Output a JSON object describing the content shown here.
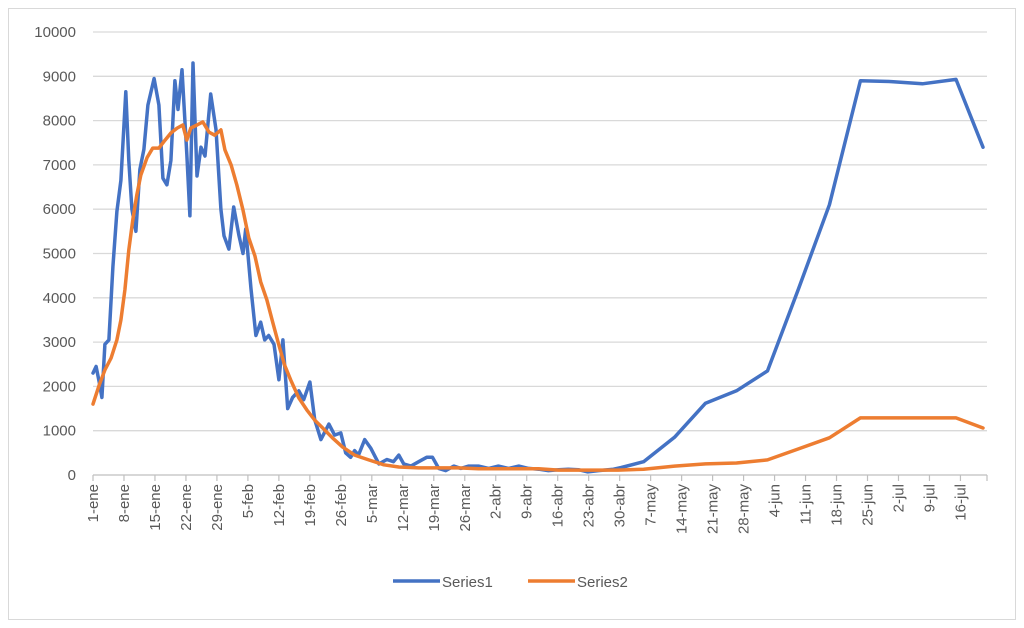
{
  "chart_data": {
    "type": "line",
    "title": "",
    "xlabel": "",
    "ylabel": "",
    "x_unit": "days since 1-ene",
    "xlim": [
      0,
      202
    ],
    "ylim": [
      0,
      10000
    ],
    "y_ticks": [
      0,
      1000,
      2000,
      3000,
      4000,
      5000,
      6000,
      7000,
      8000,
      9000,
      10000
    ],
    "x_tick_labels": [
      "1-ene",
      "8-ene",
      "15-ene",
      "22-ene",
      "29-ene",
      "5-feb",
      "12-feb",
      "19-feb",
      "26-feb",
      "5-mar",
      "12-mar",
      "19-mar",
      "26-mar",
      "2-abr",
      "9-abr",
      "16-abr",
      "23-abr",
      "30-abr",
      "7-may",
      "14-may",
      "21-may",
      "28-may",
      "4-jun",
      "11-jun",
      "18-jun",
      "25-jun",
      "2-jul",
      "9-jul",
      "16-jul"
    ],
    "x_tick_step_days": 7,
    "grid": "horizontal",
    "legend": "bottom",
    "series": [
      {
        "name": "Series1",
        "color": "#4472c4",
        "points": [
          [
            0,
            2300
          ],
          [
            0.7,
            2450
          ],
          [
            1.4,
            2100
          ],
          [
            2.0,
            1750
          ],
          [
            2.7,
            2950
          ],
          [
            3.6,
            3050
          ],
          [
            4.5,
            4700
          ],
          [
            5.4,
            5950
          ],
          [
            6.3,
            6650
          ],
          [
            7.4,
            8650
          ],
          [
            8.1,
            7100
          ],
          [
            8.8,
            6000
          ],
          [
            9.7,
            5500
          ],
          [
            10.6,
            6900
          ],
          [
            11.5,
            7350
          ],
          [
            12.4,
            8350
          ],
          [
            13.8,
            8950
          ],
          [
            14.9,
            8350
          ],
          [
            15.8,
            6700
          ],
          [
            16.7,
            6550
          ],
          [
            17.6,
            7100
          ],
          [
            18.5,
            8900
          ],
          [
            19.2,
            8250
          ],
          [
            20.1,
            9150
          ],
          [
            21.2,
            7250
          ],
          [
            21.9,
            5850
          ],
          [
            22.6,
            9300
          ],
          [
            23.5,
            6750
          ],
          [
            24.4,
            7400
          ],
          [
            25.3,
            7200
          ],
          [
            26.6,
            8600
          ],
          [
            27.8,
            7800
          ],
          [
            28.9,
            6000
          ],
          [
            29.6,
            5400
          ],
          [
            30.7,
            5100
          ],
          [
            31.8,
            6050
          ],
          [
            33.0,
            5400
          ],
          [
            33.9,
            5000
          ],
          [
            34.5,
            5550
          ],
          [
            35.7,
            4200
          ],
          [
            36.8,
            3150
          ],
          [
            37.9,
            3450
          ],
          [
            38.8,
            3050
          ],
          [
            39.7,
            3150
          ],
          [
            40.9,
            2950
          ],
          [
            42.0,
            2150
          ],
          [
            42.9,
            3050
          ],
          [
            44.0,
            1500
          ],
          [
            45.1,
            1750
          ],
          [
            46.5,
            1900
          ],
          [
            47.6,
            1700
          ],
          [
            49.0,
            2100
          ],
          [
            50.1,
            1250
          ],
          [
            51.5,
            800
          ],
          [
            53.3,
            1150
          ],
          [
            54.6,
            900
          ],
          [
            56.0,
            950
          ],
          [
            57.1,
            500
          ],
          [
            58.2,
            400
          ],
          [
            59.1,
            550
          ],
          [
            60.0,
            450
          ],
          [
            61.4,
            800
          ],
          [
            62.8,
            600
          ],
          [
            64.6,
            250
          ],
          [
            66.4,
            350
          ],
          [
            67.9,
            300
          ],
          [
            69.1,
            450
          ],
          [
            70.2,
            250
          ],
          [
            71.8,
            200
          ],
          [
            73.6,
            300
          ],
          [
            75.4,
            400
          ],
          [
            76.7,
            400
          ],
          [
            78.1,
            150
          ],
          [
            79.7,
            100
          ],
          [
            81.5,
            200
          ],
          [
            83.1,
            150
          ],
          [
            84.9,
            200
          ],
          [
            87.1,
            200
          ],
          [
            89.4,
            150
          ],
          [
            91.6,
            200
          ],
          [
            93.9,
            150
          ],
          [
            96.2,
            200
          ],
          [
            98.4,
            150
          ],
          [
            100.7,
            130
          ],
          [
            102.9,
            100
          ],
          [
            105.2,
            120
          ],
          [
            107.4,
            130
          ],
          [
            109.7,
            120
          ],
          [
            111.8,
            70
          ],
          [
            114.2,
            100
          ],
          [
            117.6,
            130
          ],
          [
            119.4,
            170
          ],
          [
            124.4,
            300
          ],
          [
            131.4,
            850
          ],
          [
            138.4,
            1620
          ],
          [
            145.4,
            1900
          ],
          [
            152.4,
            2350
          ],
          [
            159.4,
            4200
          ],
          [
            166.4,
            6100
          ],
          [
            173.4,
            8900
          ],
          [
            180.4,
            8880
          ],
          [
            187.4,
            8830
          ],
          [
            195.0,
            8930
          ],
          [
            201.1,
            7400
          ]
        ]
      },
      {
        "name": "Series2",
        "color": "#ed7d31",
        "points": [
          [
            0,
            1600
          ],
          [
            1.4,
            2030
          ],
          [
            2.7,
            2370
          ],
          [
            4.1,
            2640
          ],
          [
            5.4,
            3050
          ],
          [
            6.3,
            3500
          ],
          [
            7.2,
            4180
          ],
          [
            8.1,
            5080
          ],
          [
            9.0,
            5760
          ],
          [
            9.9,
            6320
          ],
          [
            10.8,
            6770
          ],
          [
            12.2,
            7160
          ],
          [
            13.5,
            7380
          ],
          [
            14.9,
            7380
          ],
          [
            16.3,
            7560
          ],
          [
            17.6,
            7720
          ],
          [
            19.0,
            7830
          ],
          [
            20.3,
            7900
          ],
          [
            21.2,
            7560
          ],
          [
            22.1,
            7830
          ],
          [
            23.5,
            7900
          ],
          [
            24.8,
            7970
          ],
          [
            26.2,
            7740
          ],
          [
            27.5,
            7670
          ],
          [
            28.9,
            7790
          ],
          [
            29.8,
            7340
          ],
          [
            31.2,
            7000
          ],
          [
            32.5,
            6550
          ],
          [
            33.9,
            5980
          ],
          [
            35.2,
            5350
          ],
          [
            36.6,
            4940
          ],
          [
            37.9,
            4360
          ],
          [
            39.3,
            3950
          ],
          [
            40.6,
            3450
          ],
          [
            42.0,
            2930
          ],
          [
            43.3,
            2480
          ],
          [
            44.7,
            2140
          ],
          [
            46.5,
            1740
          ],
          [
            48.3,
            1470
          ],
          [
            50.1,
            1240
          ],
          [
            51.9,
            1060
          ],
          [
            54.1,
            840
          ],
          [
            56.4,
            630
          ],
          [
            59.1,
            450
          ],
          [
            62.3,
            340
          ],
          [
            65.7,
            230
          ],
          [
            69.1,
            180
          ],
          [
            73.6,
            160
          ],
          [
            78.1,
            160
          ],
          [
            82.6,
            160
          ],
          [
            87.1,
            140
          ],
          [
            91.6,
            140
          ],
          [
            96.2,
            140
          ],
          [
            100.7,
            140
          ],
          [
            105.2,
            110
          ],
          [
            109.7,
            110
          ],
          [
            114.2,
            110
          ],
          [
            118.7,
            110
          ],
          [
            124.4,
            130
          ],
          [
            131.4,
            200
          ],
          [
            138.4,
            250
          ],
          [
            145.4,
            270
          ],
          [
            152.4,
            340
          ],
          [
            159.4,
            590
          ],
          [
            166.4,
            840
          ],
          [
            173.4,
            1290
          ],
          [
            180.4,
            1290
          ],
          [
            187.4,
            1290
          ],
          [
            195.0,
            1290
          ],
          [
            201.1,
            1060
          ]
        ]
      }
    ]
  }
}
